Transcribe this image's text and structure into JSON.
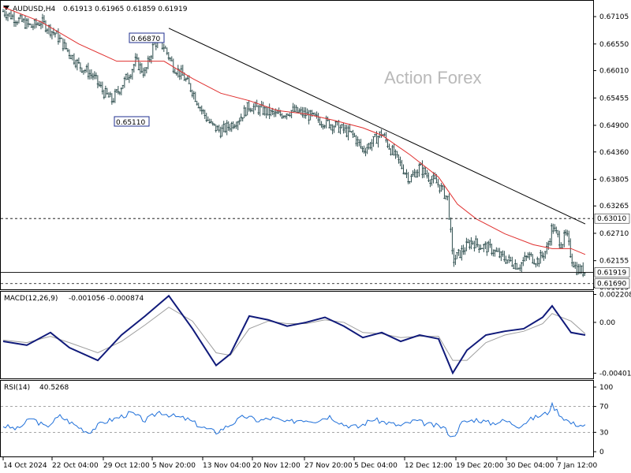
{
  "header": {
    "symbol_label": "AUDUSD,H4",
    "ohlc": "0.61913 0.61965 0.61859 0.61919",
    "menu_icon": "triangle-down-icon"
  },
  "watermark": "Action Forex",
  "colors": {
    "candles": "#2f4f4f",
    "sma": "#e0302f",
    "trendline": "#000000",
    "macd": "#101a7a",
    "signal": "#9e9e9e",
    "rsi": "#1e6fd9",
    "grid": "#000000"
  },
  "chart_data": [
    {
      "type": "candlestick",
      "title": "AUDUSD,H4",
      "ylim": [
        0.6159,
        0.6741
      ],
      "yticks": [
        "0.67105",
        "0.66550",
        "0.66010",
        "0.65455",
        "0.64900",
        "0.64360",
        "0.63805",
        "0.63265",
        "0.62710",
        "0.62155",
        "0.61615"
      ],
      "xticks": [
        "14 Oct 2024",
        "22 Oct 04:00",
        "29 Oct 12:00",
        "5 Nov 20:00",
        "13 Nov 04:00",
        "20 Nov 12:00",
        "27 Nov 20:00",
        "5 Dec 04:00",
        "12 Dec 12:00",
        "19 Dec 20:00",
        "30 Dec 04:00",
        "7 Jan 12:00"
      ],
      "annotations": [
        "0.66870",
        "0.65110"
      ],
      "levels": {
        "resistance": "0.63010",
        "current": "0.61919",
        "support": "0.61690"
      },
      "close_path": [
        [
          0,
          0.6721
        ],
        [
          3,
          0.6705
        ],
        [
          6,
          0.669
        ],
        [
          8,
          0.67
        ],
        [
          11,
          0.6676
        ],
        [
          13,
          0.665
        ],
        [
          16,
          0.6612
        ],
        [
          19,
          0.659
        ],
        [
          21,
          0.656
        ],
        [
          23,
          0.654
        ],
        [
          25,
          0.657
        ],
        [
          27,
          0.66
        ],
        [
          28,
          0.662
        ],
        [
          30,
          0.6595
        ],
        [
          32,
          0.666
        ],
        [
          34,
          0.665
        ],
        [
          36,
          0.661
        ],
        [
          38,
          0.659
        ],
        [
          40,
          0.656
        ],
        [
          42,
          0.652
        ],
        [
          44,
          0.649
        ],
        [
          46,
          0.6478
        ],
        [
          48,
          0.649
        ],
        [
          50,
          0.6505
        ],
        [
          52,
          0.653
        ],
        [
          55,
          0.652
        ],
        [
          58,
          0.651
        ],
        [
          61,
          0.652
        ],
        [
          64,
          0.6512
        ],
        [
          67,
          0.65
        ],
        [
          70,
          0.649
        ],
        [
          72,
          0.648
        ],
        [
          74,
          0.647
        ],
        [
          76,
          0.644
        ],
        [
          78,
          0.6455
        ],
        [
          80,
          0.6475
        ],
        [
          82,
          0.644
        ],
        [
          84,
          0.641
        ],
        [
          86,
          0.638
        ],
        [
          88,
          0.6405
        ],
        [
          90,
          0.6385
        ],
        [
          92,
          0.637
        ],
        [
          94,
          0.634
        ],
        [
          95,
          0.6215
        ],
        [
          97,
          0.6235
        ],
        [
          99,
          0.6255
        ],
        [
          101,
          0.6245
        ],
        [
          103,
          0.624
        ],
        [
          105,
          0.6225
        ],
        [
          107,
          0.6215
        ],
        [
          109,
          0.6205
        ],
        [
          111,
          0.6225
        ],
        [
          113,
          0.6215
        ],
        [
          115,
          0.624
        ],
        [
          116,
          0.6285
        ],
        [
          118,
          0.625
        ],
        [
          119,
          0.627
        ],
        [
          120,
          0.6225
        ],
        [
          121,
          0.62
        ],
        [
          123,
          0.6192
        ]
      ],
      "sma_path": [
        [
          0,
          0.673
        ],
        [
          8,
          0.67
        ],
        [
          16,
          0.6655
        ],
        [
          24,
          0.662
        ],
        [
          30,
          0.662
        ],
        [
          34,
          0.662
        ],
        [
          40,
          0.6585
        ],
        [
          46,
          0.6555
        ],
        [
          52,
          0.654
        ],
        [
          58,
          0.652
        ],
        [
          64,
          0.6513
        ],
        [
          70,
          0.65
        ],
        [
          76,
          0.6485
        ],
        [
          80,
          0.647
        ],
        [
          86,
          0.643
        ],
        [
          92,
          0.6385
        ],
        [
          96,
          0.633
        ],
        [
          100,
          0.63
        ],
        [
          106,
          0.627
        ],
        [
          112,
          0.6248
        ],
        [
          116,
          0.624
        ],
        [
          120,
          0.624
        ],
        [
          123,
          0.6228
        ]
      ],
      "trendline": [
        [
          35,
          0.6687
        ],
        [
          123,
          0.629
        ]
      ]
    },
    {
      "type": "line",
      "title": "MACD(12,26,9)",
      "values_text": "-0.001056 -0.000874",
      "ylim": [
        -0.0043,
        0.0023
      ],
      "yticks": [
        "0.002208",
        "0.00",
        "-0.004012"
      ],
      "series": [
        {
          "name": "MACD",
          "values": [
            [
              0,
              -0.0015
            ],
            [
              5,
              -0.0018
            ],
            [
              10,
              -0.0008
            ],
            [
              14,
              -0.002
            ],
            [
              20,
              -0.003
            ],
            [
              25,
              -0.001
            ],
            [
              30,
              0.0005
            ],
            [
              35,
              0.0021
            ],
            [
              40,
              -0.0005
            ],
            [
              45,
              -0.0034
            ],
            [
              48,
              -0.0025
            ],
            [
              52,
              0.0005
            ],
            [
              56,
              0.0002
            ],
            [
              60,
              -0.0003
            ],
            [
              64,
              0.0
            ],
            [
              68,
              0.0004
            ],
            [
              72,
              -0.0003
            ],
            [
              76,
              -0.0012
            ],
            [
              80,
              -0.0008
            ],
            [
              84,
              -0.0015
            ],
            [
              88,
              -0.001
            ],
            [
              92,
              -0.0013
            ],
            [
              95,
              -0.004
            ],
            [
              98,
              -0.0022
            ],
            [
              102,
              -0.001
            ],
            [
              106,
              -0.0007
            ],
            [
              110,
              -0.0005
            ],
            [
              114,
              0.0004
            ],
            [
              116,
              0.0013
            ],
            [
              120,
              -0.0008
            ],
            [
              123,
              -0.001
            ]
          ]
        },
        {
          "name": "Signal",
          "values": [
            [
              0,
              -0.0014
            ],
            [
              5,
              -0.0016
            ],
            [
              10,
              -0.0011
            ],
            [
              14,
              -0.0016
            ],
            [
              20,
              -0.0024
            ],
            [
              25,
              -0.0015
            ],
            [
              30,
              -0.0002
            ],
            [
              35,
              0.0012
            ],
            [
              40,
              0.0001
            ],
            [
              45,
              -0.0024
            ],
            [
              48,
              -0.0026
            ],
            [
              52,
              -0.0005
            ],
            [
              56,
              0.0001
            ],
            [
              60,
              -0.0001
            ],
            [
              64,
              -0.0001
            ],
            [
              68,
              0.0002
            ],
            [
              72,
              0.0
            ],
            [
              76,
              -0.0008
            ],
            [
              80,
              -0.0009
            ],
            [
              84,
              -0.0012
            ],
            [
              88,
              -0.0011
            ],
            [
              92,
              -0.0011
            ],
            [
              95,
              -0.003
            ],
            [
              98,
              -0.003
            ],
            [
              102,
              -0.0016
            ],
            [
              106,
              -0.001
            ],
            [
              110,
              -0.0007
            ],
            [
              114,
              -0.0001
            ],
            [
              116,
              0.0007
            ],
            [
              120,
              0.0001
            ],
            [
              123,
              -0.0009
            ]
          ]
        }
      ]
    },
    {
      "type": "line",
      "title": "RSI(14)",
      "values_text": "40.5268",
      "ylim": [
        0,
        100
      ],
      "yticks": [
        "100",
        "70",
        "30",
        "0"
      ],
      "levels": [
        70,
        30
      ],
      "series": [
        {
          "name": "RSI",
          "values": [
            [
              0,
              40
            ],
            [
              3,
              35
            ],
            [
              6,
              52
            ],
            [
              9,
              38
            ],
            [
              12,
              55
            ],
            [
              15,
              42
            ],
            [
              18,
              30
            ],
            [
              21,
              45
            ],
            [
              24,
              52
            ],
            [
              27,
              60
            ],
            [
              30,
              48
            ],
            [
              33,
              62
            ],
            [
              36,
              55
            ],
            [
              39,
              50
            ],
            [
              42,
              38
            ],
            [
              45,
              30
            ],
            [
              48,
              42
            ],
            [
              51,
              55
            ],
            [
              54,
              48
            ],
            [
              57,
              52
            ],
            [
              60,
              45
            ],
            [
              63,
              50
            ],
            [
              66,
              48
            ],
            [
              69,
              55
            ],
            [
              72,
              42
            ],
            [
              75,
              38
            ],
            [
              78,
              50
            ],
            [
              81,
              45
            ],
            [
              84,
              40
            ],
            [
              87,
              48
            ],
            [
              90,
              42
            ],
            [
              93,
              38
            ],
            [
              95,
              22
            ],
            [
              97,
              45
            ],
            [
              100,
              50
            ],
            [
              103,
              44
            ],
            [
              106,
              48
            ],
            [
              109,
              40
            ],
            [
              112,
              52
            ],
            [
              115,
              60
            ],
            [
              116,
              72
            ],
            [
              118,
              55
            ],
            [
              120,
              44
            ],
            [
              123,
              40
            ]
          ]
        }
      ]
    }
  ]
}
